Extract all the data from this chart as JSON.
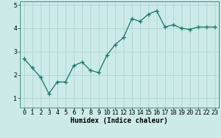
{
  "x": [
    0,
    1,
    2,
    3,
    4,
    5,
    6,
    7,
    8,
    9,
    10,
    11,
    12,
    13,
    14,
    15,
    16,
    17,
    18,
    19,
    20,
    21,
    22,
    23
  ],
  "y": [
    2.7,
    2.3,
    1.9,
    1.2,
    1.7,
    1.7,
    2.4,
    2.55,
    2.2,
    2.1,
    2.85,
    3.3,
    3.6,
    4.4,
    4.3,
    4.6,
    4.75,
    4.05,
    4.15,
    4.0,
    3.95,
    4.05,
    4.05,
    4.05
  ],
  "line_color": "#1a7a6a",
  "marker": "+",
  "marker_size": 4,
  "bg_color": "#cceae8",
  "grid_color": "#aad4d0",
  "xlabel": "Humidex (Indice chaleur)",
  "ylim": [
    0.6,
    5.15
  ],
  "xlim": [
    -0.5,
    23.5
  ],
  "yticks": [
    1,
    2,
    3,
    4,
    5
  ],
  "xticks": [
    0,
    1,
    2,
    3,
    4,
    5,
    6,
    7,
    8,
    9,
    10,
    11,
    12,
    13,
    14,
    15,
    16,
    17,
    18,
    19,
    20,
    21,
    22,
    23
  ],
  "xlabel_fontsize": 7,
  "tick_fontsize": 6.5,
  "line_width": 1.0,
  "marker_edge_width": 1.0
}
